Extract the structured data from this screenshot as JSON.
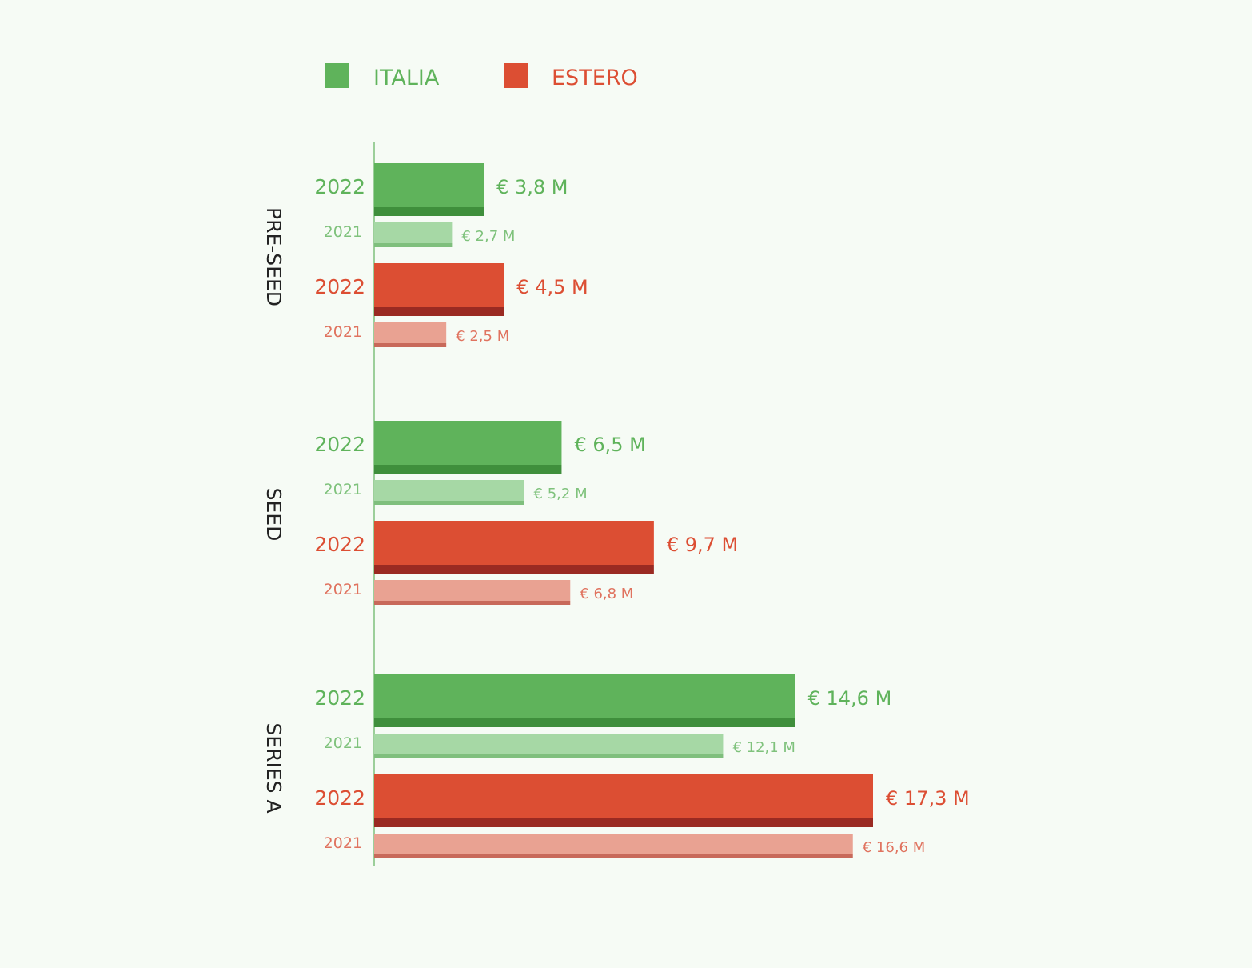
{
  "colors": {
    "italia": "#5fb35b",
    "italia_light": "#a6d8a5",
    "italia_dark": "#3f8f3c",
    "italia_light_dark": "#7fbf7d",
    "estero": "#dc4e33",
    "estero_light": "#e9a292",
    "estero_dark": "#9a2a22",
    "estero_light_dark": "#c8695a",
    "axis": "#9ccf9a",
    "background": "#f6fbf5"
  },
  "legend": [
    {
      "label": "ITALIA",
      "color_key": "italia"
    },
    {
      "label": "ESTERO",
      "color_key": "estero"
    }
  ],
  "chart_data": {
    "type": "bar",
    "orientation": "horizontal",
    "unit_prefix": "€",
    "unit_suffix": "M",
    "xlim": [
      0,
      17.3
    ],
    "grid": false,
    "legend_position": "top",
    "groups": [
      {
        "name": "PRE-SEED",
        "bars": [
          {
            "series": "ITALIA",
            "year": "2022",
            "value": 3.8,
            "label": "€ 3,8 M"
          },
          {
            "series": "ITALIA",
            "year": "2021",
            "value": 2.7,
            "label": "€ 2,7 M"
          },
          {
            "series": "ESTERO",
            "year": "2022",
            "value": 4.5,
            "label": "€ 4,5 M"
          },
          {
            "series": "ESTERO",
            "year": "2021",
            "value": 2.5,
            "label": "€ 2,5 M"
          }
        ]
      },
      {
        "name": "SEED",
        "bars": [
          {
            "series": "ITALIA",
            "year": "2022",
            "value": 6.5,
            "label": "€ 6,5 M"
          },
          {
            "series": "ITALIA",
            "year": "2021",
            "value": 5.2,
            "label": "€ 5,2 M"
          },
          {
            "series": "ESTERO",
            "year": "2022",
            "value": 9.7,
            "label": "€ 9,7 M"
          },
          {
            "series": "ESTERO",
            "year": "2021",
            "value": 6.8,
            "label": "€ 6,8 M"
          }
        ]
      },
      {
        "name": "SERIES A",
        "bars": [
          {
            "series": "ITALIA",
            "year": "2022",
            "value": 14.6,
            "label": "€ 14,6 M"
          },
          {
            "series": "ITALIA",
            "year": "2021",
            "value": 12.1,
            "label": "€ 12,1 M"
          },
          {
            "series": "ESTERO",
            "year": "2022",
            "value": 17.3,
            "label": "€ 17,3 M"
          },
          {
            "series": "ESTERO",
            "year": "2021",
            "value": 16.6,
            "label": "€ 16,6 M"
          }
        ]
      }
    ]
  }
}
